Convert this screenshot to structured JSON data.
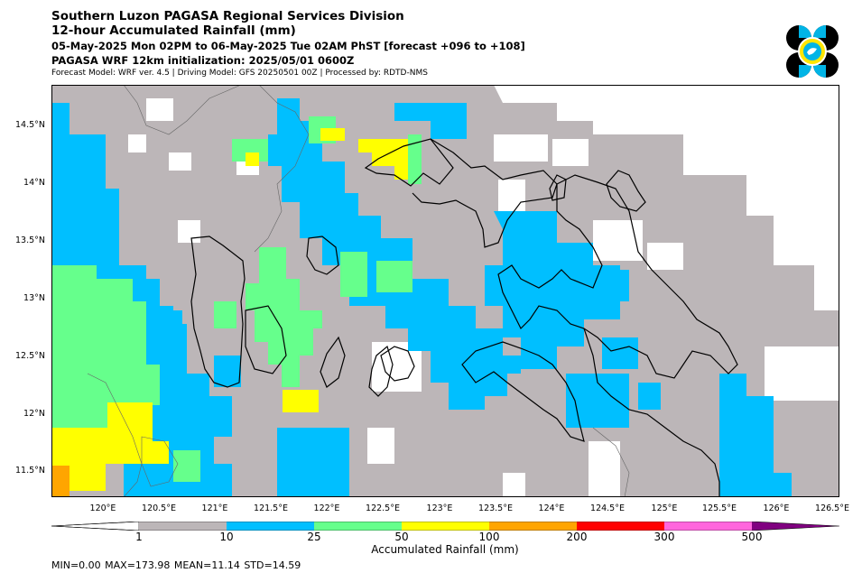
{
  "header": {
    "title_line1": "Southern Luzon PAGASA Regional Services Division",
    "title_line2": "12-hour Accumulated Rainfall (mm)",
    "period": "05-May-2025 Mon 02PM to 06-May-2025 Tue 02AM PhST [forecast +096 to +108]",
    "model_init": "PAGASA WRF 12km initialization: 2025/05/01 0600Z",
    "model_info": "Forecast Model: WRF ver. 4.5 | Driving Model: GFS 20250501 00Z | Processed by: RDTD-NMS"
  },
  "logo": {
    "name": "pagasa-logo",
    "colors": [
      "#000000",
      "#00b4e6",
      "#ffe600"
    ]
  },
  "map": {
    "lon_range": [
      119.55,
      126.55
    ],
    "lat_range": [
      11.3,
      14.85
    ],
    "lon_ticks": [
      "120°E",
      "120.5°E",
      "121°E",
      "121.5°E",
      "122°E",
      "122.5°E",
      "123°E",
      "123.5°E",
      "124°E",
      "124.5°E",
      "125°E",
      "125.5°E",
      "126°E",
      "126.5°E"
    ],
    "lat_ticks": [
      "14.5°N",
      "14°N",
      "13.5°N",
      "13°N",
      "12.5°N",
      "12°N",
      "11.5°N"
    ],
    "dominant_category": "1-10 mm",
    "background_color": "#bcb6b8"
  },
  "colorbar": {
    "title": "Accumulated Rainfall (mm)",
    "labels": [
      "1",
      "10",
      "25",
      "50",
      "100",
      "200",
      "300",
      "500"
    ],
    "colors": [
      "#ffffff",
      "#bcb6b8",
      "#00bfff",
      "#66ff8c",
      "#ffff00",
      "#ffa500",
      "#ff0000",
      "#ff66dd",
      "#800080"
    ],
    "extend": "both"
  },
  "stats": {
    "text": "MIN=0.00   MAX=173.98   MEAN=11.14   STD=14.59",
    "min": 0.0,
    "max": 173.98,
    "mean": 11.14,
    "std": 14.59
  }
}
